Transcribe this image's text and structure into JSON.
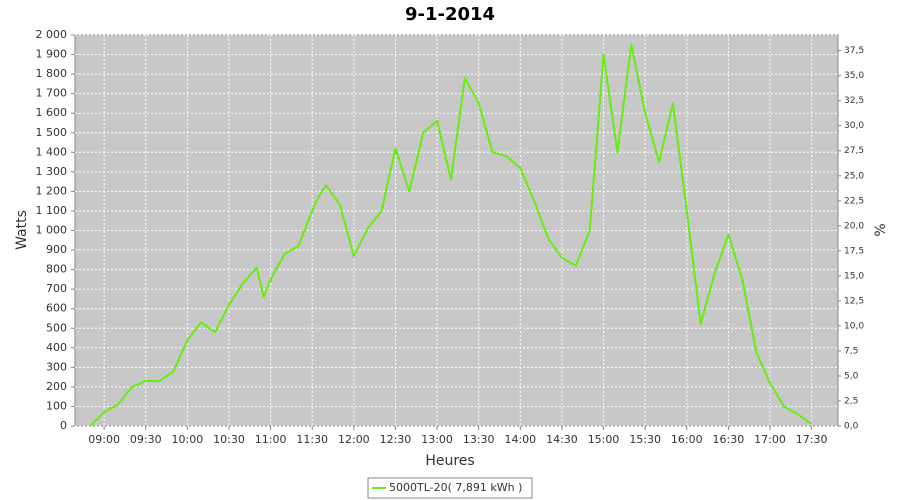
{
  "chart_data": {
    "type": "line",
    "title": "9-1-2014",
    "x_label": "Heures",
    "y_label": "Watts",
    "y2_label": "%",
    "x": [
      "08:50",
      "09:00",
      "09:10",
      "09:20",
      "09:30",
      "09:40",
      "09:50",
      "10:00",
      "10:10",
      "10:20",
      "10:30",
      "10:40",
      "10:50",
      "10:55",
      "11:00",
      "11:10",
      "11:20",
      "11:30",
      "11:35",
      "11:40",
      "11:50",
      "12:00",
      "12:10",
      "12:20",
      "12:30",
      "12:40",
      "12:50",
      "13:00",
      "13:10",
      "13:20",
      "13:30",
      "13:40",
      "13:50",
      "14:00",
      "14:10",
      "14:20",
      "14:30",
      "14:40",
      "14:50",
      "15:00",
      "15:10",
      "15:20",
      "15:30",
      "15:40",
      "15:50",
      "16:00",
      "16:10",
      "16:20",
      "16:30",
      "16:40",
      "16:50",
      "17:00",
      "17:10",
      "17:20",
      "17:30"
    ],
    "series": [
      {
        "name": "5000TL-20( 7,891 kWh )",
        "color": "#66ee11",
        "values": [
          0,
          70,
          110,
          200,
          230,
          230,
          280,
          440,
          530,
          480,
          620,
          730,
          810,
          660,
          750,
          880,
          920,
          1100,
          1180,
          1230,
          1130,
          870,
          1010,
          1100,
          1420,
          1200,
          1500,
          1560,
          1260,
          1780,
          1650,
          1400,
          1380,
          1320,
          1150,
          960,
          860,
          820,
          1000,
          1900,
          1400,
          1950,
          1600,
          1350,
          1650,
          1100,
          520,
          780,
          980,
          750,
          380,
          220,
          100,
          60,
          10
        ]
      }
    ],
    "xlim": [
      "08:39",
      "17:49"
    ],
    "xticks": [
      "09:00",
      "09:30",
      "10:00",
      "10:30",
      "11:00",
      "11:30",
      "12:00",
      "12:30",
      "13:00",
      "13:30",
      "14:00",
      "14:30",
      "15:00",
      "15:30",
      "16:00",
      "16:30",
      "17:00",
      "17:30"
    ],
    "ylim": [
      0,
      2000
    ],
    "yticks": [
      0,
      100,
      200,
      300,
      400,
      500,
      600,
      700,
      800,
      900,
      {
        "value": 1000,
        "label": "1 000"
      },
      {
        "value": 1100,
        "label": "1 100"
      },
      {
        "value": 1200,
        "label": "1 200"
      },
      {
        "value": 1300,
        "label": "1 300"
      },
      {
        "value": 1400,
        "label": "1 400"
      },
      {
        "value": 1500,
        "label": "1 500"
      },
      {
        "value": 1600,
        "label": "1 600"
      },
      {
        "value": 1700,
        "label": "1 700"
      },
      {
        "value": 1800,
        "label": "1 800"
      },
      {
        "value": 1900,
        "label": "1 900"
      },
      {
        "value": 2000,
        "label": "2 000"
      }
    ],
    "y2lim": [
      0,
      39.0625
    ],
    "y2ticks": [
      {
        "value": 0,
        "label": "0,0"
      },
      {
        "value": 2.5,
        "label": "2,5"
      },
      {
        "value": 5,
        "label": "5,0"
      },
      {
        "value": 7.5,
        "label": "7,5"
      },
      {
        "value": 10,
        "label": "10,0"
      },
      {
        "value": 12.5,
        "label": "12,5"
      },
      {
        "value": 15,
        "label": "15,0"
      },
      {
        "value": 17.5,
        "label": "17,5"
      },
      {
        "value": 20,
        "label": "20,0"
      },
      {
        "value": 22.5,
        "label": "22,5"
      },
      {
        "value": 25,
        "label": "25,0"
      },
      {
        "value": 27.5,
        "label": "27,5"
      },
      {
        "value": 30,
        "label": "30,0"
      },
      {
        "value": 32.5,
        "label": "32,5"
      },
      {
        "value": 35,
        "label": "35,0"
      },
      {
        "value": 37.5,
        "label": "37,5"
      }
    ],
    "grid": true
  }
}
